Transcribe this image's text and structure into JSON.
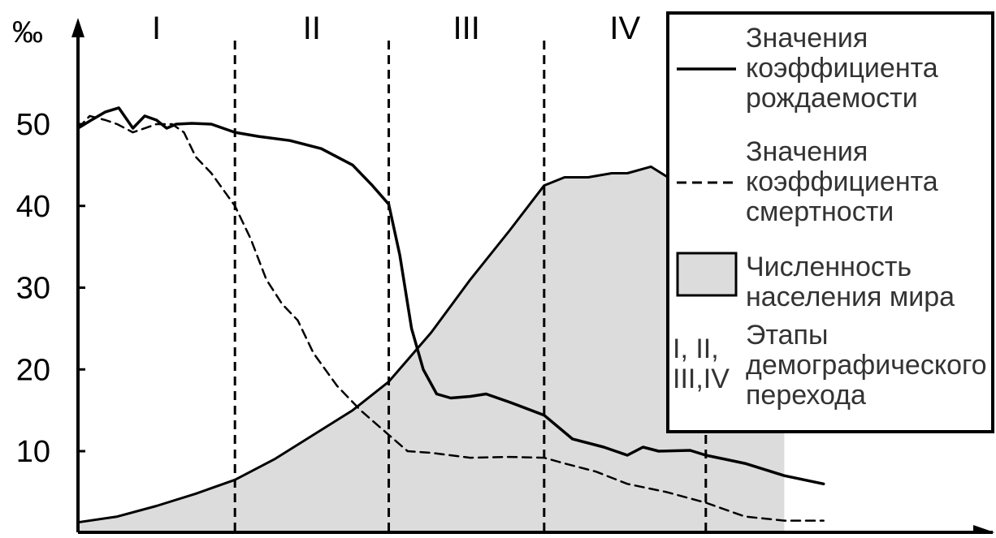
{
  "chart_data": {
    "type": "line",
    "y_unit": "‰",
    "y_ticks": [
      10,
      20,
      30,
      40,
      50
    ],
    "ylim": [
      0,
      58
    ],
    "xlim": [
      0,
      100
    ],
    "stages": [
      {
        "label": "I",
        "x_start": 0,
        "x_end": 20
      },
      {
        "label": "II",
        "x_start": 20,
        "x_end": 39.6
      },
      {
        "label": "III",
        "x_start": 39.6,
        "x_end": 59.4
      },
      {
        "label": "IV",
        "x_start": 59.4,
        "x_end": 80
      }
    ],
    "series": [
      {
        "name": "Значения коэффициента рождаемости",
        "style": "solid",
        "x": [
          0,
          1.7,
          3.5,
          5.2,
          7,
          8.5,
          10,
          11.3,
          12.5,
          14.5,
          17,
          20,
          23,
          27,
          31,
          35,
          37.5,
          39.6,
          41,
          42.5,
          44,
          45.7,
          47.5,
          50,
          52,
          55,
          59.4,
          63,
          67,
          70,
          72,
          74,
          78,
          80,
          85,
          90,
          95
        ],
        "y": [
          49.5,
          50.5,
          51.5,
          52,
          49.5,
          51,
          50.5,
          49.5,
          50,
          50.1,
          50,
          49,
          48.5,
          48,
          47,
          45,
          42.5,
          40.2,
          34,
          25,
          20,
          17,
          16.5,
          16.7,
          17,
          16,
          14.4,
          11.5,
          10.5,
          9.5,
          10.5,
          10,
          10.1,
          9.5,
          8.5,
          7,
          6
        ]
      },
      {
        "name": "Значения коэффициента смертности",
        "style": "dashed",
        "x": [
          0,
          1.5,
          3.5,
          5,
          7,
          10,
          12,
          13.5,
          15,
          17,
          20,
          22,
          24,
          26,
          28,
          30,
          33,
          36,
          39.6,
          42,
          45,
          50,
          55,
          59.4,
          62,
          66,
          70,
          75,
          80,
          85,
          90,
          95
        ],
        "y": [
          49.5,
          51,
          50.5,
          50,
          49,
          50,
          50,
          49,
          46,
          44,
          40,
          36,
          31,
          28,
          26,
          22,
          18,
          15,
          12,
          10,
          9.8,
          9.2,
          9.3,
          9.2,
          8.5,
          7.5,
          6,
          5,
          3.7,
          2,
          1.5,
          1.5
        ]
      },
      {
        "name": "Численность населения мира",
        "style": "area",
        "x": [
          0,
          5,
          10,
          15,
          20,
          25,
          30,
          35,
          39.6,
          45,
          50,
          55,
          59.4,
          62,
          65,
          68,
          70,
          73,
          76,
          80,
          84,
          86,
          90
        ],
        "y": [
          1.3,
          2,
          3.3,
          4.8,
          6.5,
          9,
          12,
          15,
          18.5,
          24.5,
          31,
          37,
          42.5,
          43.5,
          43.5,
          44,
          44,
          44.8,
          43,
          42.2,
          42,
          42,
          42
        ]
      }
    ],
    "legend": {
      "entries": [
        {
          "kind": "solid",
          "lines": [
            "Значения",
            "коэффициента",
            "рождаемости"
          ]
        },
        {
          "kind": "dashed",
          "lines": [
            "Значения",
            "коэффициента",
            "смертности"
          ]
        },
        {
          "kind": "area",
          "lines": [
            "Численность",
            "населения мира"
          ]
        },
        {
          "kind": "stages",
          "symbol_lines": [
            "I, II,",
            "III,IV"
          ],
          "lines": [
            "Этапы",
            "демографического",
            "перехода"
          ]
        }
      ],
      "placement": "top-right"
    },
    "colors": {
      "area_fill": "#dcdcdc",
      "line": "#000000",
      "background": "#ffffff"
    }
  }
}
